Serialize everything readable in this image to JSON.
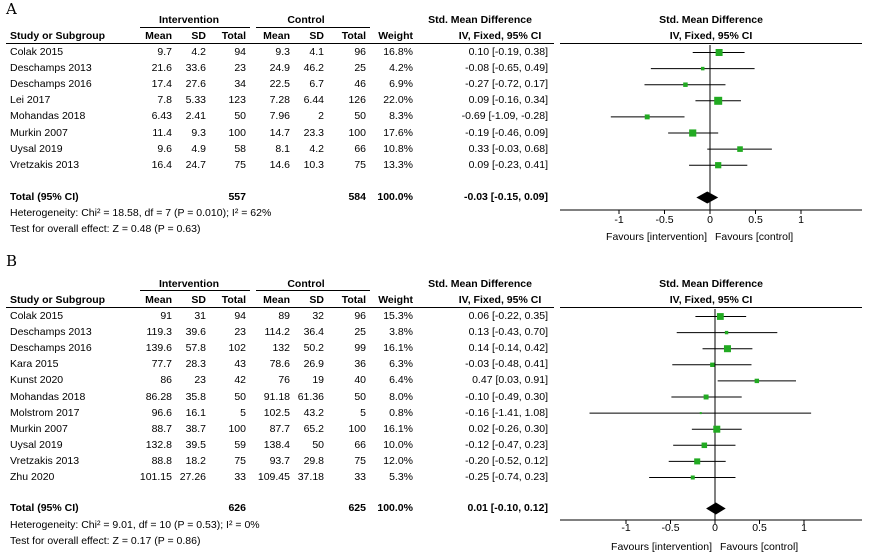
{
  "headers": {
    "intervention": "Intervention",
    "control": "Control",
    "smd_group": "Std. Mean Difference",
    "plot_title": "Std. Mean Difference",
    "study": "Study or Subgroup",
    "mean": "Mean",
    "sd": "SD",
    "total": "Total",
    "weight": "Weight",
    "ci": "IV, Fixed, 95% CI"
  },
  "colors": {
    "box": "#22aa22",
    "diamond": "#000000",
    "line": "#000000"
  },
  "chart_data": [
    {
      "type": "forest",
      "label": "A",
      "rows": [
        {
          "study": "Colak 2015",
          "im": "9.7",
          "isd": "4.2",
          "it": "94",
          "cm": "9.3",
          "csd": "4.1",
          "ct": "96",
          "weight": "16.8%",
          "ci_text": "0.10 [-0.19, 0.38]",
          "est": 0.1,
          "lo": -0.19,
          "hi": 0.38
        },
        {
          "study": "Deschamps 2013",
          "im": "21.6",
          "isd": "33.6",
          "it": "23",
          "cm": "24.9",
          "csd": "46.2",
          "ct": "25",
          "weight": "4.2%",
          "ci_text": "-0.08 [-0.65, 0.49]",
          "est": -0.08,
          "lo": -0.65,
          "hi": 0.49
        },
        {
          "study": "Deschamps 2016",
          "im": "17.4",
          "isd": "27.6",
          "it": "34",
          "cm": "22.5",
          "csd": "6.7",
          "ct": "46",
          "weight": "6.9%",
          "ci_text": "-0.27 [-0.72, 0.17]",
          "est": -0.27,
          "lo": -0.72,
          "hi": 0.17
        },
        {
          "study": "Lei 2017",
          "im": "7.8",
          "isd": "5.33",
          "it": "123",
          "cm": "7.28",
          "csd": "6.44",
          "ct": "126",
          "weight": "22.0%",
          "ci_text": "0.09 [-0.16, 0.34]",
          "est": 0.09,
          "lo": -0.16,
          "hi": 0.34
        },
        {
          "study": "Mohandas 2018",
          "im": "6.43",
          "isd": "2.41",
          "it": "50",
          "cm": "7.96",
          "csd": "2",
          "ct": "50",
          "weight": "8.3%",
          "ci_text": "-0.69 [-1.09, -0.28]",
          "est": -0.69,
          "lo": -1.09,
          "hi": -0.28
        },
        {
          "study": "Murkin 2007",
          "im": "11.4",
          "isd": "9.3",
          "it": "100",
          "cm": "14.7",
          "csd": "23.3",
          "ct": "100",
          "weight": "17.6%",
          "ci_text": "-0.19 [-0.46, 0.09]",
          "est": -0.19,
          "lo": -0.46,
          "hi": 0.09
        },
        {
          "study": "Uysal 2019",
          "im": "9.6",
          "isd": "4.9",
          "it": "58",
          "cm": "8.1",
          "csd": "4.2",
          "ct": "66",
          "weight": "10.8%",
          "ci_text": "0.33 [-0.03, 0.68]",
          "est": 0.33,
          "lo": -0.03,
          "hi": 0.68
        },
        {
          "study": "Vretzakis 2013",
          "im": "16.4",
          "isd": "24.7",
          "it": "75",
          "cm": "14.6",
          "csd": "10.3",
          "ct": "75",
          "weight": "13.3%",
          "ci_text": "0.09 [-0.23, 0.41]",
          "est": 0.09,
          "lo": -0.23,
          "hi": 0.41
        }
      ],
      "total": {
        "label": "Total (95% CI)",
        "it": "557",
        "ct": "584",
        "weight": "100.0%",
        "ci_text": "-0.03 [-0.15, 0.09]",
        "est": -0.03,
        "lo": -0.15,
        "hi": 0.09
      },
      "heterogeneity": "Heterogeneity: Chi² = 18.58, df = 7 (P = 0.010); I² = 62%",
      "overall": "Test for overall effect: Z = 0.48 (P = 0.63)",
      "xlim": [
        -1.2,
        1.2
      ],
      "ticks": [
        {
          "v": -1,
          "t": "-1"
        },
        {
          "v": -0.5,
          "t": "-0.5"
        },
        {
          "v": 0,
          "t": "0"
        },
        {
          "v": 0.5,
          "t": "0.5"
        },
        {
          "v": 1,
          "t": "1"
        }
      ],
      "favours_left": "Favours [intervention]",
      "favours_right": "Favours [control]"
    },
    {
      "type": "forest",
      "label": "B",
      "rows": [
        {
          "study": "Colak 2015",
          "im": "91",
          "isd": "31",
          "it": "94",
          "cm": "89",
          "csd": "32",
          "ct": "96",
          "weight": "15.3%",
          "ci_text": "0.06 [-0.22, 0.35]",
          "est": 0.06,
          "lo": -0.22,
          "hi": 0.35
        },
        {
          "study": "Deschamps 2013",
          "im": "119.3",
          "isd": "39.6",
          "it": "23",
          "cm": "114.2",
          "csd": "36.4",
          "ct": "25",
          "weight": "3.8%",
          "ci_text": "0.13 [-0.43, 0.70]",
          "est": 0.13,
          "lo": -0.43,
          "hi": 0.7
        },
        {
          "study": "Deschamps 2016",
          "im": "139.6",
          "isd": "57.8",
          "it": "102",
          "cm": "132",
          "csd": "50.2",
          "ct": "99",
          "weight": "16.1%",
          "ci_text": "0.14 [-0.14, 0.42]",
          "est": 0.14,
          "lo": -0.14,
          "hi": 0.42
        },
        {
          "study": "Kara 2015",
          "im": "77.7",
          "isd": "28.3",
          "it": "43",
          "cm": "78.6",
          "csd": "26.9",
          "ct": "36",
          "weight": "6.3%",
          "ci_text": "-0.03 [-0.48, 0.41]",
          "est": -0.03,
          "lo": -0.48,
          "hi": 0.41
        },
        {
          "study": "Kunst 2020",
          "im": "86",
          "isd": "23",
          "it": "42",
          "cm": "76",
          "csd": "19",
          "ct": "40",
          "weight": "6.4%",
          "ci_text": "0.47 [0.03, 0.91]",
          "est": 0.47,
          "lo": 0.03,
          "hi": 0.91
        },
        {
          "study": "Mohandas 2018",
          "im": "86.28",
          "isd": "35.8",
          "it": "50",
          "cm": "91.18",
          "csd": "61.36",
          "ct": "50",
          "weight": "8.0%",
          "ci_text": "-0.10 [-0.49, 0.30]",
          "est": -0.1,
          "lo": -0.49,
          "hi": 0.3
        },
        {
          "study": "Molstrom 2017",
          "im": "96.6",
          "isd": "16.1",
          "it": "5",
          "cm": "102.5",
          "csd": "43.2",
          "ct": "5",
          "weight": "0.8%",
          "ci_text": "-0.16 [-1.41, 1.08]",
          "est": -0.16,
          "lo": -1.41,
          "hi": 1.08
        },
        {
          "study": "Murkin 2007",
          "im": "88.7",
          "isd": "38.7",
          "it": "100",
          "cm": "87.7",
          "csd": "65.2",
          "ct": "100",
          "weight": "16.1%",
          "ci_text": "0.02 [-0.26, 0.30]",
          "est": 0.02,
          "lo": -0.26,
          "hi": 0.3
        },
        {
          "study": "Uysal 2019",
          "im": "132.8",
          "isd": "39.5",
          "it": "59",
          "cm": "138.4",
          "csd": "50",
          "ct": "66",
          "weight": "10.0%",
          "ci_text": "-0.12 [-0.47, 0.23]",
          "est": -0.12,
          "lo": -0.47,
          "hi": 0.23
        },
        {
          "study": "Vretzakis 2013",
          "im": "88.8",
          "isd": "18.2",
          "it": "75",
          "cm": "93.7",
          "csd": "29.8",
          "ct": "75",
          "weight": "12.0%",
          "ci_text": "-0.20 [-0.52, 0.12]",
          "est": -0.2,
          "lo": -0.52,
          "hi": 0.12
        },
        {
          "study": "Zhu 2020",
          "im": "101.15",
          "isd": "27.26",
          "it": "33",
          "cm": "109.45",
          "csd": "37.18",
          "ct": "33",
          "weight": "5.3%",
          "ci_text": "-0.25 [-0.74, 0.23]",
          "est": -0.25,
          "lo": -0.74,
          "hi": 0.23
        }
      ],
      "total": {
        "label": "Total (95% CI)",
        "it": "626",
        "ct": "625",
        "weight": "100.0%",
        "ci_text": "0.01 [-0.10, 0.12]",
        "est": 0.01,
        "lo": -0.1,
        "hi": 0.12
      },
      "heterogeneity": "Heterogeneity: Chi² = 9.01, df = 10 (P = 0.53); I² = 0%",
      "overall": "Test for overall effect: Z = 0.17 (P = 0.86)",
      "xlim": [
        -1.5,
        1.5
      ],
      "ticks": [
        {
          "v": -1,
          "t": "-1"
        },
        {
          "v": -0.5,
          "t": "-0.5"
        },
        {
          "v": 0,
          "t": "0"
        },
        {
          "v": 0.5,
          "t": "0.5"
        },
        {
          "v": 1,
          "t": "1"
        }
      ],
      "favours_left": "Favours [intervention]",
      "favours_right": "Favours [control]"
    }
  ]
}
